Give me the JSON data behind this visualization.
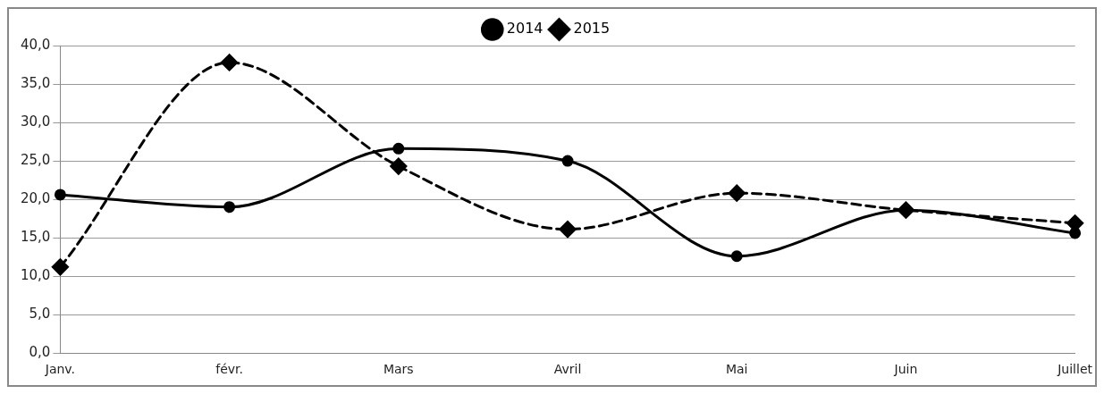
{
  "chart_data": {
    "type": "line",
    "categories": [
      "Janv.",
      "févr.",
      "Mars",
      "Avril",
      "Mai",
      "Juin",
      "Juillet"
    ],
    "series": [
      {
        "name": "2014",
        "color": "#000000",
        "values": [
          20.6,
          19.0,
          26.6,
          25.0,
          12.6,
          18.6,
          15.6
        ],
        "marker": "circle",
        "line_style": "solid"
      },
      {
        "name": "2015",
        "color": "#000000",
        "values": [
          11.2,
          37.8,
          24.3,
          16.1,
          20.8,
          18.6,
          16.9
        ],
        "marker": "diamond",
        "line_style": "dashed"
      }
    ],
    "ylim": [
      0,
      40
    ],
    "yticks": [
      {
        "value": 0,
        "label": "0,0"
      },
      {
        "value": 5,
        "label": "5,0"
      },
      {
        "value": 10,
        "label": "10,0"
      },
      {
        "value": 15,
        "label": "15,0"
      },
      {
        "value": 20,
        "label": "20,0"
      },
      {
        "value": 25,
        "label": "25,0"
      },
      {
        "value": 30,
        "label": "30,0"
      },
      {
        "value": 35,
        "label": "35,0"
      },
      {
        "value": 40,
        "label": "40,0"
      }
    ],
    "grid": "y",
    "legend": "top"
  }
}
